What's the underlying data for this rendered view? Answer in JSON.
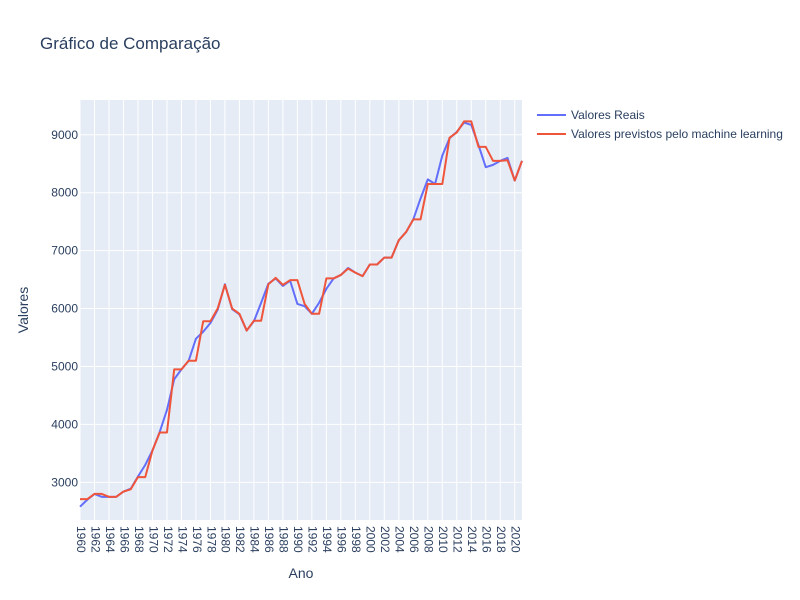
{
  "chart_data": {
    "type": "line",
    "title": "Gráfico de Comparação",
    "xlabel": "Ano",
    "ylabel": "Valores",
    "xlim": [
      1960,
      2021
    ],
    "ylim": [
      2350,
      9600
    ],
    "yticks": [
      3000,
      4000,
      5000,
      6000,
      7000,
      8000,
      9000
    ],
    "xticks": [
      1960,
      1962,
      1964,
      1966,
      1968,
      1970,
      1972,
      1974,
      1976,
      1978,
      1980,
      1982,
      1984,
      1986,
      1988,
      1990,
      1992,
      1994,
      1996,
      1998,
      2000,
      2002,
      2004,
      2006,
      2008,
      2010,
      2012,
      2014,
      2016,
      2018,
      2020
    ],
    "grid": true,
    "legend_position": "top-right",
    "x": [
      1960,
      1961,
      1962,
      1963,
      1964,
      1965,
      1966,
      1967,
      1968,
      1969,
      1970,
      1971,
      1972,
      1973,
      1974,
      1975,
      1976,
      1977,
      1978,
      1979,
      1980,
      1981,
      1982,
      1983,
      1984,
      1985,
      1986,
      1987,
      1988,
      1989,
      1990,
      1991,
      1992,
      1993,
      1994,
      1995,
      1996,
      1997,
      1998,
      1999,
      2000,
      2001,
      2002,
      2003,
      2004,
      2005,
      2006,
      2007,
      2008,
      2009,
      2010,
      2011,
      2012,
      2013,
      2014,
      2015,
      2016,
      2017,
      2018,
      2019,
      2020,
      2021
    ],
    "series": [
      {
        "name": "Valores Reais",
        "color": "#636efa",
        "values": [
          2580,
          2700,
          2800,
          2750,
          2750,
          2750,
          2840,
          2890,
          3100,
          3300,
          3550,
          3870,
          4250,
          4780,
          4950,
          5100,
          5480,
          5600,
          5750,
          5980,
          6420,
          5990,
          5900,
          5620,
          5780,
          6100,
          6430,
          6520,
          6390,
          6480,
          6080,
          6040,
          5910,
          6100,
          6340,
          6520,
          6580,
          6700,
          6620,
          6560,
          6760,
          6760,
          6880,
          6880,
          7180,
          7320,
          7540,
          7900,
          8230,
          8150,
          8640,
          8940,
          9050,
          9210,
          9170,
          8820,
          8440,
          8480,
          8550,
          8600,
          8210,
          8550
        ]
      },
      {
        "name": "Valores previstos pelo machine learning",
        "color": "#ef553b",
        "values": [
          2710,
          2710,
          2800,
          2800,
          2750,
          2750,
          2840,
          2880,
          3090,
          3090,
          3550,
          3860,
          3860,
          4950,
          4950,
          5100,
          5100,
          5780,
          5780,
          6000,
          6410,
          6000,
          5910,
          5620,
          5790,
          5790,
          6420,
          6530,
          6410,
          6490,
          6490,
          6080,
          5910,
          5910,
          6520,
          6520,
          6580,
          6690,
          6620,
          6560,
          6760,
          6760,
          6880,
          6880,
          7180,
          7320,
          7540,
          7540,
          8150,
          8150,
          8150,
          8950,
          9040,
          9230,
          9230,
          8790,
          8790,
          8550,
          8550,
          8560,
          8210,
          8550
        ]
      }
    ]
  }
}
